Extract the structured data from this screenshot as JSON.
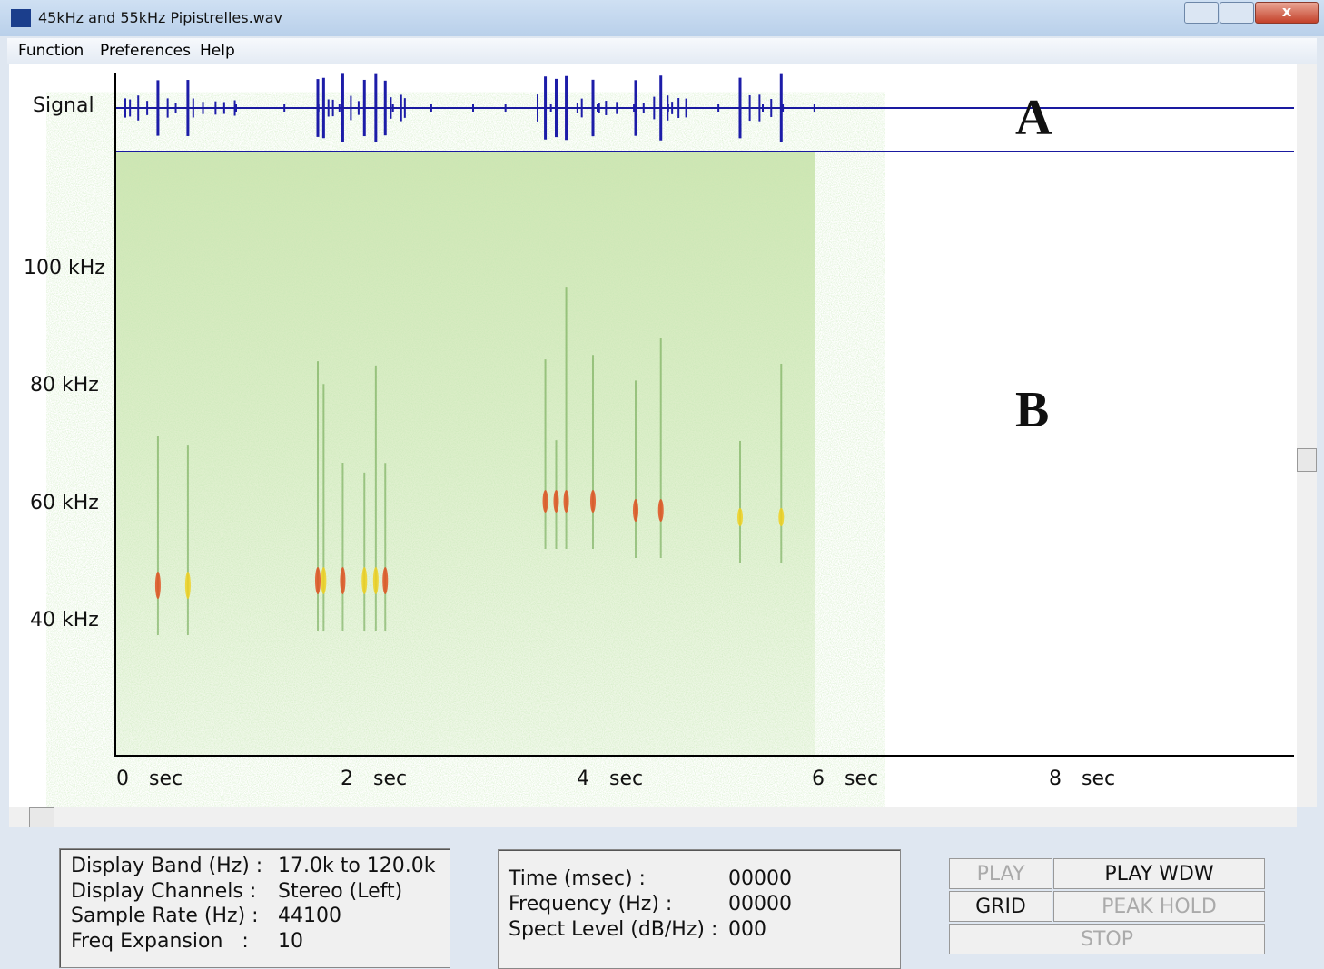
{
  "window": {
    "title": "45kHz and 55kHz Pipistrelles.wav"
  },
  "menu": [
    "Function",
    "Preferences",
    "Help"
  ],
  "display": {
    "signal_label": "Signal",
    "frequency_labels": [
      "100 kHz",
      "80 kHz",
      "60 kHz",
      "40 kHz"
    ],
    "time_labels": [
      {
        "value": "0",
        "unit": "sec"
      },
      {
        "value": "2",
        "unit": "sec"
      },
      {
        "value": "4",
        "unit": "sec"
      },
      {
        "value": "6",
        "unit": "sec"
      },
      {
        "value": "8",
        "unit": "sec"
      }
    ],
    "annotations": [
      "A",
      "B"
    ]
  },
  "settings": {
    "rows": [
      {
        "label": "Display Band (Hz) :",
        "value": "17.0k to 120.0k"
      },
      {
        "label": "Display Channels :",
        "value": "Stereo (Left)"
      },
      {
        "label": "Sample Rate (Hz) :",
        "value": "44100"
      },
      {
        "label": "Freq Expansion   :",
        "value": "10"
      }
    ]
  },
  "cursor": {
    "rows": [
      {
        "label": "Time (msec) :",
        "value": "00000"
      },
      {
        "label": "Frequency (Hz) :",
        "value": "00000"
      },
      {
        "label": "Spect Level (dB/Hz) :",
        "value": "000"
      }
    ]
  },
  "buttons": [
    {
      "label": "PLAY",
      "enabled": false
    },
    {
      "label": "PLAY WDW",
      "enabled": true
    },
    {
      "label": "GRID",
      "enabled": true
    },
    {
      "label": "PEAK HOLD",
      "enabled": false
    },
    {
      "label": "STOP",
      "enabled": false
    }
  ]
}
